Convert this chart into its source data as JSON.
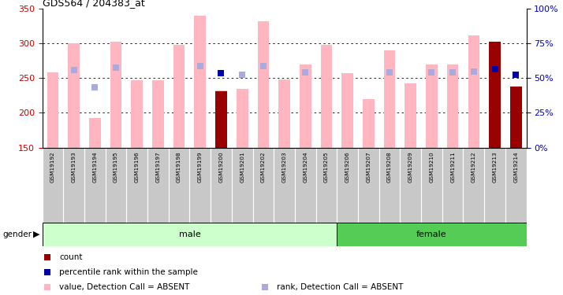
{
  "title": "GDS564 / 204383_at",
  "samples": [
    "GSM19192",
    "GSM19193",
    "GSM19194",
    "GSM19195",
    "GSM19196",
    "GSM19197",
    "GSM19198",
    "GSM19199",
    "GSM19200",
    "GSM19201",
    "GSM19202",
    "GSM19203",
    "GSM19204",
    "GSM19205",
    "GSM19206",
    "GSM19207",
    "GSM19208",
    "GSM19209",
    "GSM19210",
    "GSM19211",
    "GSM19212",
    "GSM19213",
    "GSM19214"
  ],
  "pink_bar_values": [
    258,
    300,
    193,
    303,
    247,
    247,
    298,
    340,
    232,
    234,
    332,
    248,
    270,
    298,
    257,
    220,
    290,
    242,
    270,
    270,
    312,
    303,
    237
  ],
  "light_blue_rank_values": [
    null,
    262,
    237,
    265,
    null,
    null,
    null,
    268,
    257,
    255,
    268,
    null,
    258,
    null,
    null,
    null,
    258,
    null,
    258,
    258,
    260,
    263,
    null
  ],
  "dark_red_bar_values": [
    null,
    null,
    null,
    null,
    null,
    null,
    null,
    null,
    231,
    null,
    null,
    null,
    null,
    null,
    null,
    null,
    null,
    null,
    null,
    null,
    null,
    303,
    238
  ],
  "dark_blue_rank_values": [
    null,
    null,
    null,
    null,
    null,
    null,
    null,
    null,
    257,
    null,
    null,
    null,
    null,
    null,
    null,
    null,
    null,
    null,
    null,
    null,
    null,
    263,
    255
  ],
  "male_count": 14,
  "female_count": 9,
  "ylim_left": [
    150,
    350
  ],
  "ylim_right": [
    0,
    100
  ],
  "yticks_left": [
    150,
    200,
    250,
    300,
    350
  ],
  "yticks_right": [
    0,
    25,
    50,
    75,
    100
  ],
  "color_pink_bar": "#FFB6C1",
  "color_light_blue_square": "#AAAADD",
  "color_dark_red_bar": "#990000",
  "color_dark_blue_square": "#0000AA",
  "color_male_bg": "#CCFFCC",
  "color_female_bg": "#55CC55",
  "color_xticklabel_bg": "#C8C8C8",
  "color_left_axis": "#CC0000",
  "color_right_axis": "#0000CC",
  "bar_width": 0.55
}
